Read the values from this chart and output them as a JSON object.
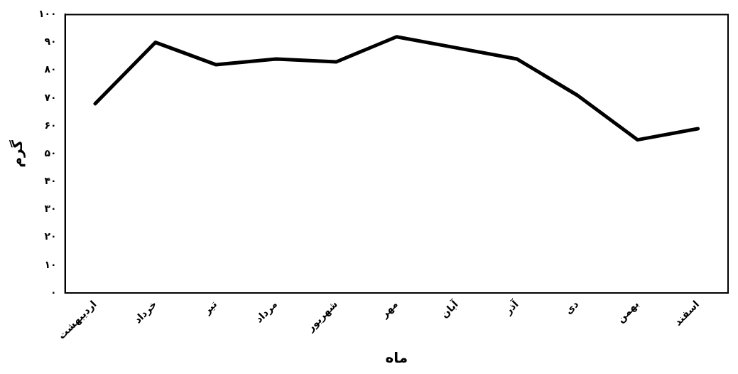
{
  "chart_data": {
    "type": "line",
    "xlabel": "ماه",
    "ylabel": "گرم",
    "categories": [
      "اردیبهشت",
      "خرداد",
      "تیر",
      "مرداد",
      "شهریور",
      "مهر",
      "آبان",
      "آذر",
      "دی",
      "بهمن",
      "اسفند"
    ],
    "series": [
      {
        "color": "#000000",
        "values": [
          68,
          90,
          82,
          84,
          83,
          92,
          88,
          84,
          71,
          55,
          59
        ]
      }
    ],
    "ylim": [
      0,
      100
    ],
    "yticks": [
      {
        "value": 0,
        "label": "۰"
      },
      {
        "value": 10,
        "label": "۱۰"
      },
      {
        "value": 20,
        "label": "۲۰"
      },
      {
        "value": 30,
        "label": "۳۰"
      },
      {
        "value": 40,
        "label": "۴۰"
      },
      {
        "value": 50,
        "label": "۵۰"
      },
      {
        "value": 60,
        "label": "۶۰"
      },
      {
        "value": 70,
        "label": "۷۰"
      },
      {
        "value": 80,
        "label": "۸۰"
      },
      {
        "value": 90,
        "label": "۹۰"
      },
      {
        "value": 100,
        "label": "۱۰۰"
      }
    ],
    "grid": false,
    "legend": false,
    "marker": "none",
    "line_style": "solid"
  }
}
